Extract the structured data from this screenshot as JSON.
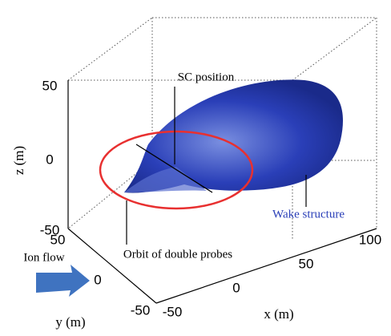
{
  "z_axis": {
    "label": "z (m)",
    "ticks": [
      50,
      0,
      -50
    ]
  },
  "y_axis": {
    "label": "y (m)",
    "ticks": [
      50,
      0,
      -50
    ]
  },
  "x_axis": {
    "label": "x (m)",
    "ticks": [
      -50,
      0,
      50,
      100
    ]
  },
  "annotations": {
    "sc_position": "SC position",
    "wake_structure": "Wake structure",
    "orbit": "Orbit of double probes",
    "ion_flow": "Ion flow"
  }
}
